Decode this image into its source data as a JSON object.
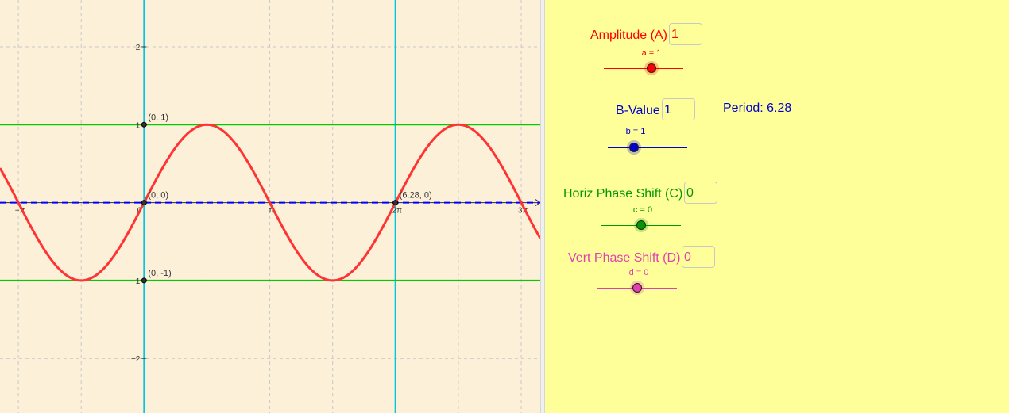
{
  "chart_data": {
    "type": "line",
    "function": "y = A sin(B(x - C)) + D",
    "parameters": {
      "A": 1,
      "B": 1,
      "C": 0,
      "D": 0
    },
    "xlim": [
      -3.6,
      9.9
    ],
    "ylim": [
      -2.7,
      2.6
    ],
    "x_tick_labels": [
      "−π",
      "0",
      "π",
      "2π",
      "3π"
    ],
    "x_tick_values": [
      -3.14159,
      0,
      3.14159,
      6.28318,
      9.42478
    ],
    "y_tick_labels": [
      "2",
      "1",
      "−1",
      "−2"
    ],
    "y_tick_values": [
      2,
      1,
      -1,
      -2
    ],
    "grid": true,
    "horizontal_lines": [
      {
        "y": 1,
        "color": "#00cc00"
      },
      {
        "y": -1,
        "color": "#00cc00"
      },
      {
        "y": 0,
        "color": "#0000ff",
        "style": "dashed"
      }
    ],
    "vertical_lines": [
      {
        "x": 0,
        "color": "#00c8e0"
      },
      {
        "x": 6.28,
        "color": "#00c8e0"
      }
    ],
    "points": [
      {
        "x": 0,
        "y": 1,
        "label": "(0, 1)"
      },
      {
        "x": 0,
        "y": 0,
        "label": "(0, 0)"
      },
      {
        "x": 0,
        "y": -1,
        "label": "(0, -1)"
      },
      {
        "x": 6.28,
        "y": 0,
        "label": "(6.28, 0)"
      }
    ],
    "curve_color": "#ff3333"
  },
  "panel": {
    "amplitude": {
      "label": "Amplitude (A)",
      "value": "1",
      "caption": "a = 1",
      "color": "#ff0000",
      "slider_fraction": 0.6
    },
    "bvalue": {
      "label": "B-Value",
      "value": "1",
      "caption": "b = 1",
      "color": "#0000cc",
      "slider_fraction": 0.33
    },
    "period": {
      "text": "Period: 6.28",
      "color": "#0000cc"
    },
    "horiz": {
      "label": "Horiz Phase Shift (C)",
      "value": "0",
      "caption": "c = 0",
      "color": "#009900",
      "slider_fraction": 0.5
    },
    "vert": {
      "label": "Vert Phase Shift (D)",
      "value": "0",
      "caption": "d = 0",
      "color": "#e040b0",
      "slider_fraction": 0.5
    }
  }
}
